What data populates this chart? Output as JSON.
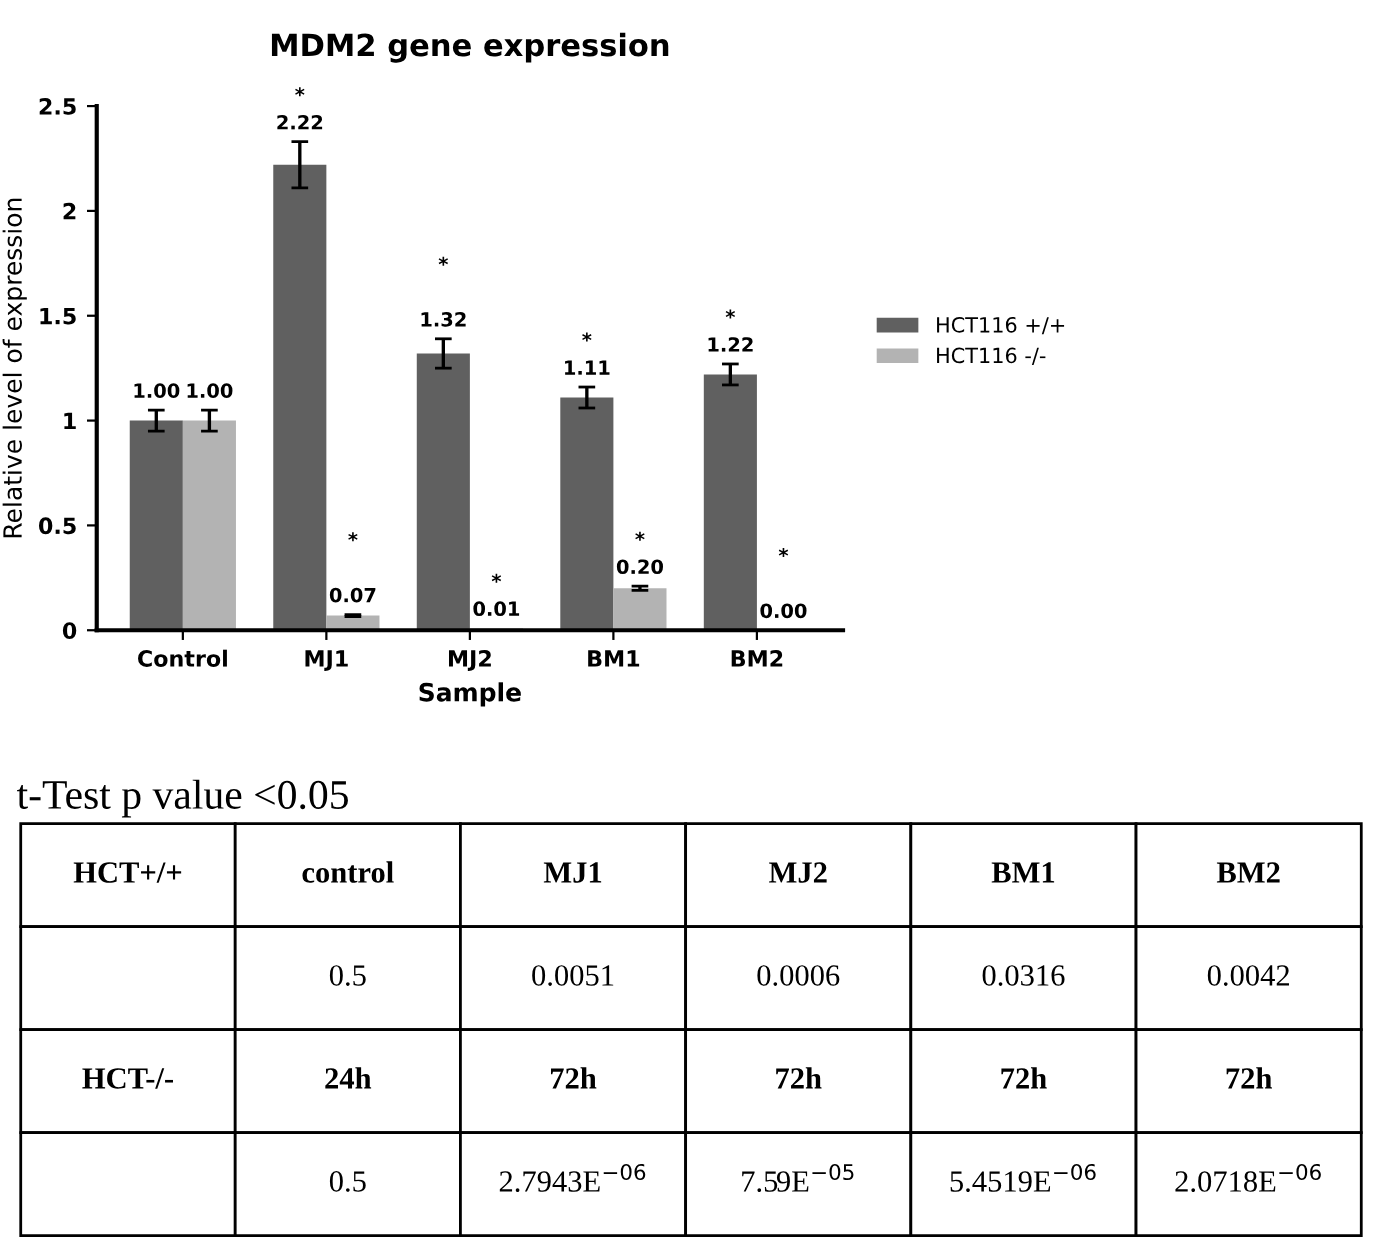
{
  "chart_data": [
    {
      "type": "bar",
      "title": "MDM2 gene expression",
      "xlabel": "Sample",
      "ylabel": "Relative level of expression",
      "categories": [
        "Control",
        "MJ1",
        "MJ2",
        "BM1",
        "BM2"
      ],
      "series": [
        {
          "name": "HCT116 +/+",
          "color": "#606060",
          "values": [
            1.0,
            2.22,
            1.32,
            1.11,
            1.22
          ],
          "errors": [
            0.05,
            0.11,
            0.07,
            0.05,
            0.05
          ],
          "value_labels": [
            "1.00",
            "*\n2.22",
            "*\n\n1.32",
            "*\n1.11",
            "*\n1.22"
          ]
        },
        {
          "name": "HCT116 -/-",
          "color": "#b3b3b3",
          "values": [
            1.0,
            0.07,
            0.01,
            0.2,
            0.0
          ],
          "errors": [
            0.05,
            0.005,
            null,
            0.01,
            null
          ],
          "value_labels": [
            "1.00",
            "*\n\n0.07",
            "*\n0.01",
            "*\n0.20",
            "*\n\n0.00"
          ]
        }
      ],
      "ylim": [
        0,
        2.5
      ],
      "yticks": [
        0,
        0.5,
        1,
        1.5,
        2,
        2.5
      ],
      "grid": false,
      "legend": "right"
    },
    {
      "type": "other",
      "title": "t-Test p value <0.05",
      "cell_labels": [
        [
          "HCT+/+",
          "control",
          "MJ1",
          "MJ2",
          "BM1",
          "BM2"
        ],
        [
          null,
          "0.5",
          "0.0051",
          "0.0006",
          "0.0316",
          "0.0042"
        ],
        [
          "HCT-/-",
          "24h",
          "72h",
          "72h",
          "72h",
          "72h"
        ],
        [
          null,
          "0.5",
          "2.7943E$^{−06}$",
          "7.59E$^{−05}$",
          "5.4519E$^{−06}$",
          "2.0718E$^{−06}$"
        ]
      ]
    }
  ]
}
